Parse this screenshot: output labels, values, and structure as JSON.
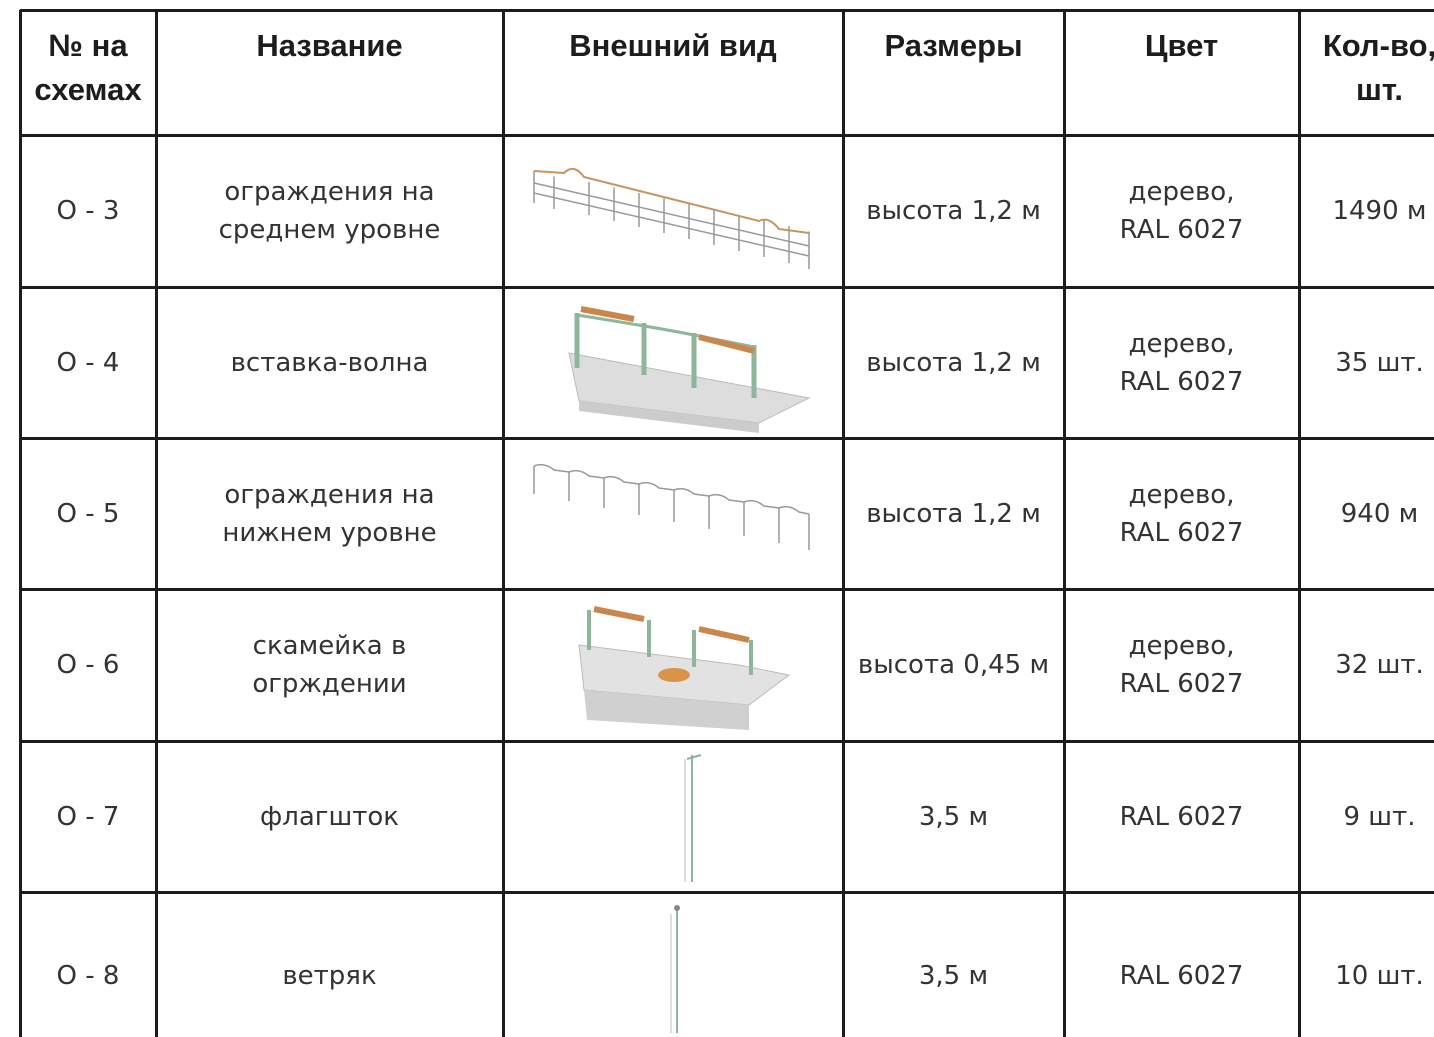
{
  "table": {
    "header": [
      [
        "№ на",
        "схемах"
      ],
      [
        "Название"
      ],
      [
        "Внешний вид"
      ],
      [
        "Размеры"
      ],
      [
        "Цвет"
      ],
      [
        "Кол-во,",
        "шт."
      ]
    ],
    "rows": [
      {
        "num": "О - 3",
        "name": [
          "ограждения на",
          "среднем уровне"
        ],
        "size": "высота 1,2 м",
        "color": [
          "дерево,",
          "RAL 6027"
        ],
        "qty": "1490 м"
      },
      {
        "num": "О - 4",
        "name": [
          "вставка-волна"
        ],
        "size": "высота 1,2 м",
        "color": [
          "дерево,",
          "RAL 6027"
        ],
        "qty": "35 шт."
      },
      {
        "num": "О - 5",
        "name": [
          "ограждения на",
          "нижнем уровне"
        ],
        "size": "высота 1,2 м",
        "color": [
          "дерево,",
          "RAL 6027"
        ],
        "qty": "940 м"
      },
      {
        "num": "О - 6",
        "name": [
          "скамейка в",
          "огрждении"
        ],
        "size": "высота 0,45 м",
        "color": [
          "дерево,",
          "RAL 6027"
        ],
        "qty": "32 шт."
      },
      {
        "num": "О - 7",
        "name": [
          "флагшток"
        ],
        "size": "3,5 м",
        "color": [
          "RAL 6027"
        ],
        "qty": "9 шт."
      },
      {
        "num": "О - 8",
        "name": [
          "ветряк"
        ],
        "size": "3,5 м",
        "color": [
          "RAL 6027"
        ],
        "qty": "10 шт."
      }
    ]
  }
}
